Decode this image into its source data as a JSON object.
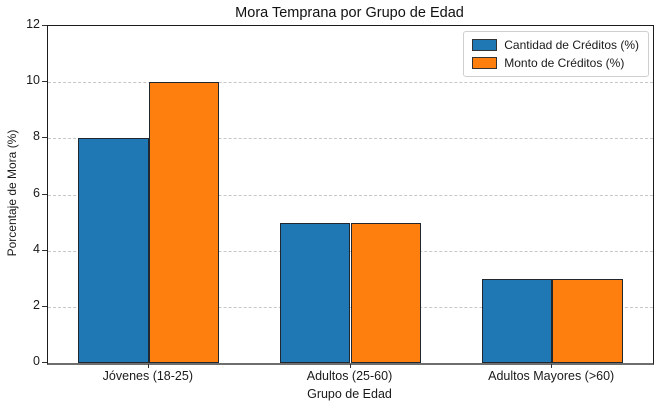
{
  "chart_data": {
    "type": "bar",
    "title": "Mora Temprana por Grupo de Edad",
    "xlabel": "Grupo de Edad",
    "ylabel": "Porcentaje de Mora (%)",
    "categories": [
      "Jóvenes (18-25)",
      "Adultos (25-60)",
      "Adultos Mayores (>60)"
    ],
    "series": [
      {
        "name": "Cantidad de Créditos (%)",
        "color": "#1f77b4",
        "values": [
          8,
          5,
          3
        ]
      },
      {
        "name": "Monto de Créditos (%)",
        "color": "#ff7f0e",
        "values": [
          10,
          5,
          3
        ]
      }
    ],
    "ylim": [
      0,
      12
    ],
    "yticks": [
      0,
      2,
      4,
      6,
      8,
      10,
      12
    ],
    "bar_width": 0.35,
    "grid": "horizontal dashed",
    "legend_position": "upper right",
    "bar_edge_color": "#20272e"
  }
}
